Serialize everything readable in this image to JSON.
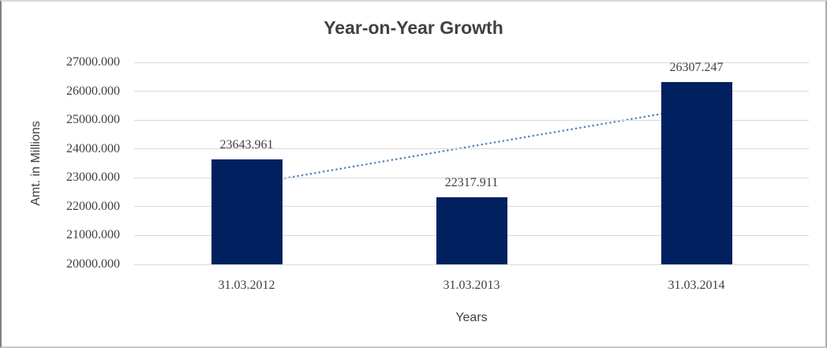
{
  "chart_data": {
    "type": "bar",
    "title": "Year-on-Year Growth",
    "xlabel": "Years",
    "ylabel": "Amt. in Millions",
    "categories": [
      "31.03.2012",
      "31.03.2013",
      "31.03.2014"
    ],
    "values": [
      23643.961,
      22317.911,
      26307.247
    ],
    "data_labels": [
      "23643.961",
      "22317.911",
      "26307.247"
    ],
    "y_tick_labels": [
      "27000.000",
      "26000.000",
      "25000.000",
      "24000.000",
      "23000.000",
      "22000.000",
      "21000.000",
      "20000.000"
    ],
    "ylim": [
      20000,
      27000
    ],
    "grid": "horizontal-only",
    "legend": "none",
    "colors": {
      "bar_fill": "#002060",
      "trendline": "#4f81bd",
      "gridline": "#d9d9d9",
      "title_text": "#404040",
      "axis_text": "#3f3f3f"
    },
    "trendline": {
      "type": "linear",
      "style": "dotted",
      "start_value": 22758,
      "end_value": 25421
    }
  }
}
